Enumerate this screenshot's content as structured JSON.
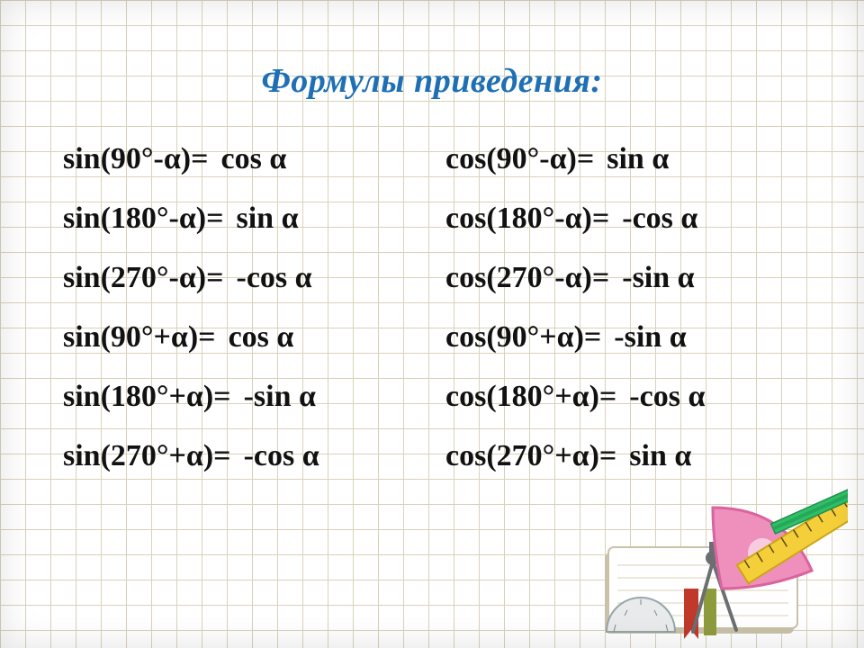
{
  "colors": {
    "title": "#1e6fb3",
    "text": "#111111",
    "grid_line": "#d9d2b9",
    "bg": "#ffffff"
  },
  "typography": {
    "title_fontsize": 38,
    "formula_fontsize": 34,
    "font_family": "Times New Roman"
  },
  "title": "Формулы приведения:",
  "left_formulas": [
    {
      "lhs": "sin(90°-α)=",
      "rhs": "cos α"
    },
    {
      "lhs": "sin(180°-α)=",
      "rhs": "sin α"
    },
    {
      "lhs": "sin(270°-α)=",
      "rhs": "-cos α"
    },
    {
      "lhs": "sin(90°+α)=",
      "rhs": "cos α"
    },
    {
      "lhs": "sin(180°+α)=",
      "rhs": "-sin α"
    },
    {
      "lhs": "sin(270°+α)=",
      "rhs": "-cos α"
    }
  ],
  "right_formulas": [
    {
      "lhs": "cos(90°-α)=",
      "rhs": "sin α"
    },
    {
      "lhs": "cos(180°-α)=",
      "rhs": "-cos α"
    },
    {
      "lhs": "cos(270°-α)=",
      "rhs": "-sin α"
    },
    {
      "lhs": "cos(90°+α)=",
      "rhs": "-sin α"
    },
    {
      "lhs": "cos(180°+α)=",
      "rhs": "-cos α"
    },
    {
      "lhs": "cos(270°+α)=",
      "rhs": "sin α"
    }
  ],
  "illustration": {
    "notebook": "#ffffff",
    "notebook_shadow": "#c9c2a8",
    "bookmark": "#c0392b",
    "bookmark2": "#8e9b3d",
    "ruler": "#f1c40f",
    "ruler_tick": "#5a4a12",
    "pencil_body": "#2ecc71",
    "pencil_tip": "#e9d7a8",
    "pencil_lead": "#333333",
    "triangle": "#e56fa7",
    "compass": "#7f8c8d",
    "protractor": "#bdc3c7"
  }
}
